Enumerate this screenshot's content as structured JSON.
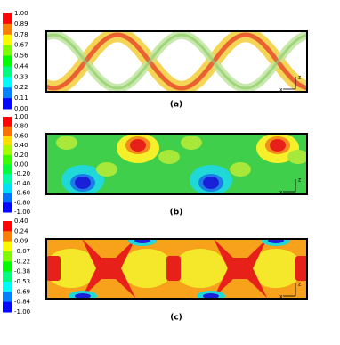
{
  "panels": [
    {
      "label": "(a)",
      "colorbar": [
        "1.00",
        "0.89",
        "0.78",
        "0.67",
        "0.56",
        "0.44",
        "0.33",
        "0.22",
        "0.11",
        "0.00"
      ],
      "axis_z": "z",
      "axis_x": "x"
    },
    {
      "label": "(b)",
      "colorbar": [
        "1.00",
        "0.80",
        "0.60",
        "0.40",
        "0.20",
        "0.00",
        "-0.20",
        "-0.40",
        "-0.60",
        "-0.80",
        "-1.00"
      ],
      "axis_z": "z",
      "axis_x": "x"
    },
    {
      "label": "(c)",
      "colorbar": [
        "0.40",
        "0.24",
        "0.09",
        "-0.07",
        "-0.22",
        "-0.38",
        "-0.53",
        "-0.69",
        "-0.84",
        "-1.00"
      ],
      "axis_z": "z",
      "axis_x": "x"
    }
  ]
}
